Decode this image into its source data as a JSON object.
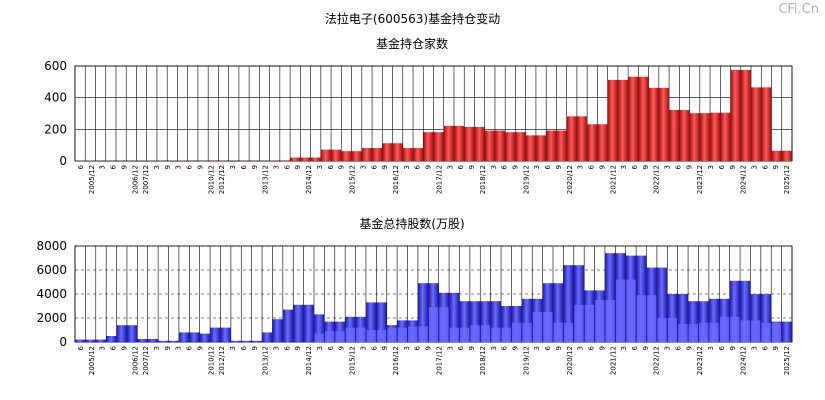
{
  "title": "法拉电子(600563)基金持仓变动",
  "watermark": "CFi.Cn",
  "colors": {
    "chart1_bar": "#ee2c2c",
    "chart2_bar": "#3333ee",
    "grid": "#000000"
  },
  "x_labels": [
    "6",
    "2005/12",
    "3",
    "6",
    "9",
    "2006/12",
    "2007/12",
    "3",
    "9",
    "3",
    "6",
    "9",
    "2010/12",
    "2012/12",
    "3",
    "6",
    "9",
    "2013/12",
    "3",
    "6",
    "9",
    "2014/12",
    "3",
    "6",
    "9",
    "2015/12",
    "3",
    "6",
    "9",
    "2016/12",
    "3",
    "6",
    "9",
    "2017/12",
    "3",
    "6",
    "9",
    "2018/12",
    "3",
    "6",
    "9",
    "2019/12",
    "3",
    "6",
    "9",
    "2020/12",
    "3",
    "6",
    "9",
    "2021/12",
    "3",
    "6",
    "9",
    "2022/12",
    "3",
    "6",
    "9",
    "2023/12",
    "3",
    "6",
    "9",
    "2024/12",
    "3",
    "6",
    "9",
    "2025/12"
  ],
  "chart_data": [
    {
      "type": "bar",
      "title": "基金持仓家数",
      "ylim": [
        0,
        600
      ],
      "yticks": [
        0,
        200,
        400,
        600
      ],
      "grid": true,
      "series": [
        {
          "values": [
            1,
            1,
            1,
            1,
            1,
            1,
            1,
            1,
            1,
            1,
            1,
            1,
            1,
            1,
            1,
            1,
            1,
            1,
            1,
            1,
            1,
            22,
            22,
            22,
            72,
            72,
            62,
            62,
            82,
            82,
            112,
            112,
            82,
            82,
            182,
            182,
            222,
            222,
            215,
            215,
            192,
            192,
            182,
            182,
            162,
            162,
            192,
            192,
            282,
            282,
            232,
            232,
            512,
            512,
            532,
            532,
            462,
            462,
            322,
            322,
            302,
            302,
            305,
            305,
            575,
            575,
            465,
            465,
            65,
            65
          ]
        },
        {
          "values": [
            0,
            0,
            0,
            0,
            0,
            0,
            0,
            0,
            0,
            0,
            0,
            0,
            0,
            0,
            0,
            0,
            0,
            0,
            0,
            0,
            0,
            0,
            0,
            0,
            0,
            0,
            0,
            0,
            0,
            0,
            0,
            0,
            0,
            0,
            0,
            0,
            0,
            0,
            0,
            0,
            0,
            0,
            0,
            0,
            0,
            0,
            0,
            0,
            0,
            0,
            0,
            0,
            0,
            0,
            0,
            0,
            0,
            0,
            0,
            0,
            0,
            0,
            0,
            0,
            0,
            0,
            0,
            0,
            0,
            0
          ]
        }
      ]
    },
    {
      "type": "bar",
      "title": "基金总持股数(万股)",
      "ylim": [
        0,
        8000
      ],
      "yticks": [
        0,
        2000,
        4000,
        6000,
        8000
      ],
      "grid": true,
      "series": [
        {
          "values": [
            200,
            200,
            200,
            500,
            1400,
            1400,
            250,
            250,
            100,
            100,
            800,
            800,
            700,
            1200,
            1200,
            100,
            100,
            100,
            800,
            1900,
            2700,
            3100,
            3100,
            2300,
            1700,
            1700,
            2100,
            2100,
            3300,
            3300,
            1400,
            1800,
            1800,
            4900,
            4900,
            4100,
            4100,
            3400,
            3400,
            3400,
            3400,
            3000,
            3000,
            3600,
            3600,
            4900,
            4900,
            6400,
            6400,
            4300,
            4300,
            7400,
            7400,
            7200,
            7200,
            6200,
            6200,
            4000,
            4000,
            3400,
            3400,
            3600,
            3600,
            5100,
            5100,
            4000,
            4000,
            1700,
            1700
          ]
        },
        {
          "values": [
            0,
            0,
            0,
            0,
            0,
            0,
            0,
            0,
            0,
            0,
            0,
            0,
            0,
            0,
            0,
            0,
            0,
            0,
            0,
            0,
            0,
            0,
            0,
            700,
            900,
            900,
            1200,
            1200,
            1000,
            1000,
            1200,
            1200,
            1300,
            1300,
            2900,
            2900,
            1200,
            1200,
            1400,
            1400,
            1200,
            1200,
            1600,
            1600,
            2500,
            2500,
            1600,
            1600,
            3100,
            3100,
            3500,
            3500,
            5200,
            5200,
            3900,
            3900,
            2000,
            2000,
            1500,
            1500,
            1600,
            1600,
            2100,
            2100,
            1800,
            1800,
            1600,
            1600,
            0,
            0
          ]
        }
      ]
    }
  ]
}
